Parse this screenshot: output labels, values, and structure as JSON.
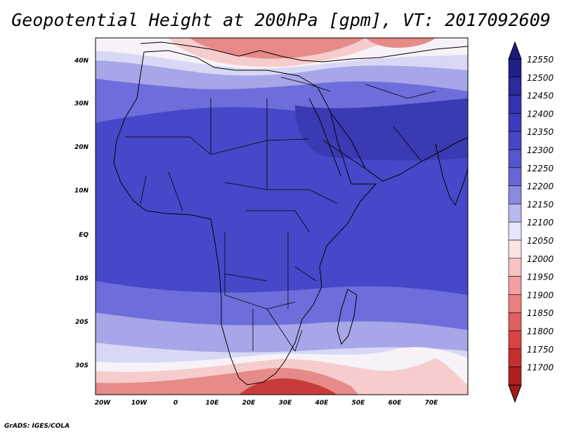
{
  "title": "Geopotential Height at 200hPa [gpm], VT: 2017092609",
  "footer": "GrADS: IGES/COLA",
  "map": {
    "x_ticks": [
      "20W",
      "10W",
      "0",
      "10E",
      "20E",
      "30E",
      "40E",
      "50E",
      "60E",
      "70E"
    ],
    "y_ticks": [
      "40N",
      "30N",
      "20N",
      "10N",
      "EQ",
      "10S",
      "20S",
      "30S"
    ]
  },
  "colorbar": {
    "levels": [
      "12550",
      "12500",
      "12450",
      "12400",
      "12350",
      "12300",
      "12250",
      "12200",
      "12150",
      "12100",
      "12050",
      "12000",
      "11950",
      "11900",
      "11850",
      "11800",
      "11750",
      "11700"
    ],
    "colors": [
      "#1f1f87",
      "#2a2a9e",
      "#3333b0",
      "#3b3bbe",
      "#4646c6",
      "#5555cd",
      "#6666d4",
      "#8a8ae0",
      "#b8b8ee",
      "#e6e6fa",
      "#fbe3e3",
      "#f6c2c2",
      "#f0a0a0",
      "#e88080",
      "#e06060",
      "#d84343",
      "#c52f2f",
      "#ad1f1f"
    ],
    "top_arrow_color": "#1a1a7a",
    "bottom_arrow_color": "#a01c1c"
  },
  "field_colors": {
    "red_dark": "#c93b3b",
    "red_mid": "#e68a8a",
    "red_light": "#f6cccc",
    "white": "#f7f2f7",
    "blue_pale": "#d8d8f6",
    "blue_light": "#a6a6e8",
    "blue_mid": "#6d6ddb",
    "blue_main": "#4747c9",
    "blue_deep": "#3a3ab3"
  }
}
